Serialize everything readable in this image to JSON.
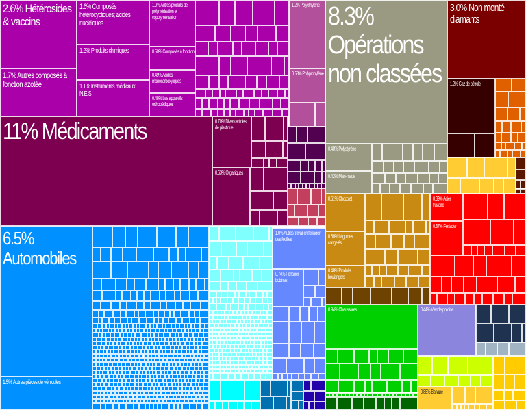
{
  "chart_data": {
    "type": "treemap",
    "title": "",
    "colors": {
      "purple": "#a900a9",
      "pink": "#b2509b",
      "maroon": "#7d0050",
      "darkpurple": "#520050",
      "rose": "#c2405e",
      "grey": "#9a9a82",
      "darkred": "#7a0000",
      "blackred": "#360000",
      "orange": "#e06000",
      "yellow": "#ffcc33",
      "brown": "#5a1800",
      "gold": "#c88a12",
      "chocolate": "#6e4200",
      "red": "#ff0000",
      "blue": "#0090ff",
      "lightcyan": "#80ffff",
      "cyan": "#00ffff",
      "periwinkle": "#6688ff",
      "steelblue": "#0070b0",
      "indigo": "#2200aa",
      "green": "#00d000",
      "darkgreen": "#006400",
      "lavender": "#8b85dd",
      "navy": "#1f3350",
      "greyblue": "#a0b4c4",
      "lime": "#ccff00",
      "amber": "#ffcc00"
    },
    "items": [
      {
        "label": "2.6% Hétérosides & vaccins",
        "value": 2.6,
        "color": "purple"
      },
      {
        "label": "1.7% Autres composés à fonction azotée",
        "value": 1.7,
        "color": "purple"
      },
      {
        "label": "1.6% Composés hétérocycliques; acides nucléiques",
        "value": 1.6,
        "color": "purple"
      },
      {
        "label": "1.2% Produits chimiques",
        "value": 1.2,
        "color": "purple"
      },
      {
        "label": "1.1% Instruments médicaux N.E.S.",
        "value": 1.1,
        "color": "purple"
      },
      {
        "label": "1.0% Autres produits de polymérisation et copolymérisation",
        "value": 1.0,
        "color": "purple"
      },
      {
        "label": "0.50% Composés à fonction",
        "value": 0.5,
        "color": "purple"
      },
      {
        "label": "0.49% Acides monocarboxyliques",
        "value": 0.49,
        "color": "purple"
      },
      {
        "label": "0.48% Les appareils orthopédiques",
        "value": 0.48,
        "color": "purple"
      },
      {
        "label": "1.2% Polyéthylène",
        "value": 1.2,
        "color": "pink"
      },
      {
        "label": "0.58% Polypropylène",
        "value": 0.58,
        "color": "pink"
      },
      {
        "label": "11% Médicaments",
        "value": 11,
        "color": "maroon"
      },
      {
        "label": "0.70% Divers articles de plastique",
        "value": 0.7,
        "color": "maroon"
      },
      {
        "label": "0.63% Organiques",
        "value": 0.63,
        "color": "maroon"
      },
      {
        "label": "8.3% Opérations non classées",
        "value": 8.3,
        "color": "grey"
      },
      {
        "label": "0.48% Polystyrène",
        "value": 0.48,
        "color": "grey"
      },
      {
        "label": "0.42% Man-made",
        "value": 0.42,
        "color": "grey"
      },
      {
        "label": "3.0% Non monté diamants",
        "value": 3.0,
        "color": "darkred"
      },
      {
        "label": "1.2% Gaz de pétrole",
        "value": 1.2,
        "color": "blackred"
      },
      {
        "label": "0.61% Chocolat",
        "value": 0.61,
        "color": "gold"
      },
      {
        "label": "0.60% Légumes congelés",
        "value": 0.6,
        "color": "gold"
      },
      {
        "label": "0.48% Produits boulangers",
        "value": 0.48,
        "color": "gold"
      },
      {
        "label": "0.39% Acier travaillé",
        "value": 0.39,
        "color": "red"
      },
      {
        "label": "0.37% Fer/acier",
        "value": 0.37,
        "color": "red"
      },
      {
        "label": "6.5% Automobiles",
        "value": 6.5,
        "color": "blue"
      },
      {
        "label": "1.5% Autres pièces de véhicules",
        "value": 1.5,
        "color": "blue"
      },
      {
        "label": "1.0% Autres travail en fer/acier des feuilles",
        "value": 1.0,
        "color": "periwinkle"
      },
      {
        "label": "0.74% Fer/acier bobines",
        "value": 0.74,
        "color": "periwinkle"
      },
      {
        "label": "0.94% Chaussures",
        "value": 0.94,
        "color": "green"
      },
      {
        "label": "0.44% Viande porcine",
        "value": 0.44,
        "color": "lavender"
      },
      {
        "label": "0.88% Banane",
        "value": 0.88,
        "color": "yellow"
      }
    ]
  }
}
